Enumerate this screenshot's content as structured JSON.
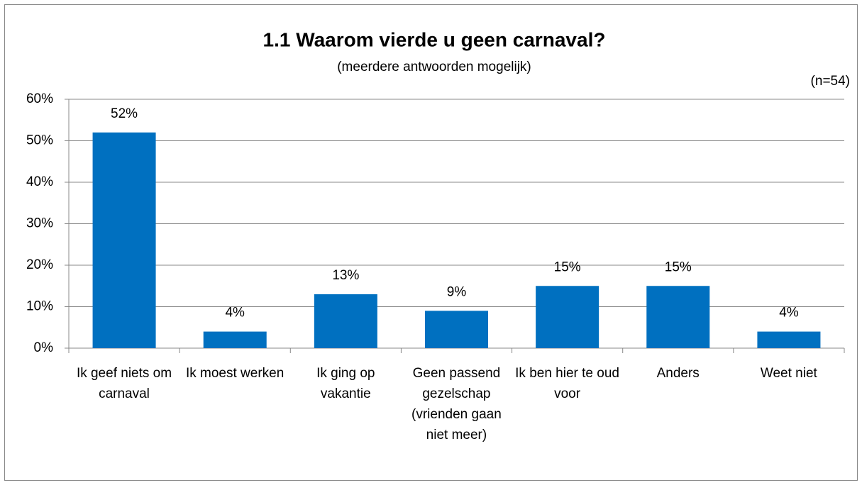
{
  "chart_data": {
    "type": "bar",
    "title": "1.1 Waarom vierde u geen carnaval?",
    "subtitle": "(meerdere antwoorden mogelijk)",
    "annotation": "(n=54)",
    "categories": [
      "Ik geef niets om carnaval",
      "Ik moest werken",
      "Ik ging op vakantie",
      "Geen passend gezelschap (vrienden gaan niet meer)",
      "Ik ben hier te oud voor",
      "Anders",
      "Weet niet"
    ],
    "values": [
      52,
      4,
      13,
      9,
      15,
      15,
      4
    ],
    "value_labels": [
      "52%",
      "4%",
      "13%",
      "9%",
      "15%",
      "15%",
      "4%"
    ],
    "color": "#0070c0",
    "ylim": [
      0,
      60
    ],
    "yticks": [
      {
        "value": 0,
        "label": "0%"
      },
      {
        "value": 10,
        "label": "10%"
      },
      {
        "value": 20,
        "label": "20%"
      },
      {
        "value": 30,
        "label": "30%"
      },
      {
        "value": 40,
        "label": "40%"
      },
      {
        "value": 50,
        "label": "50%"
      },
      {
        "value": 60,
        "label": "60%"
      }
    ],
    "grid": true
  }
}
